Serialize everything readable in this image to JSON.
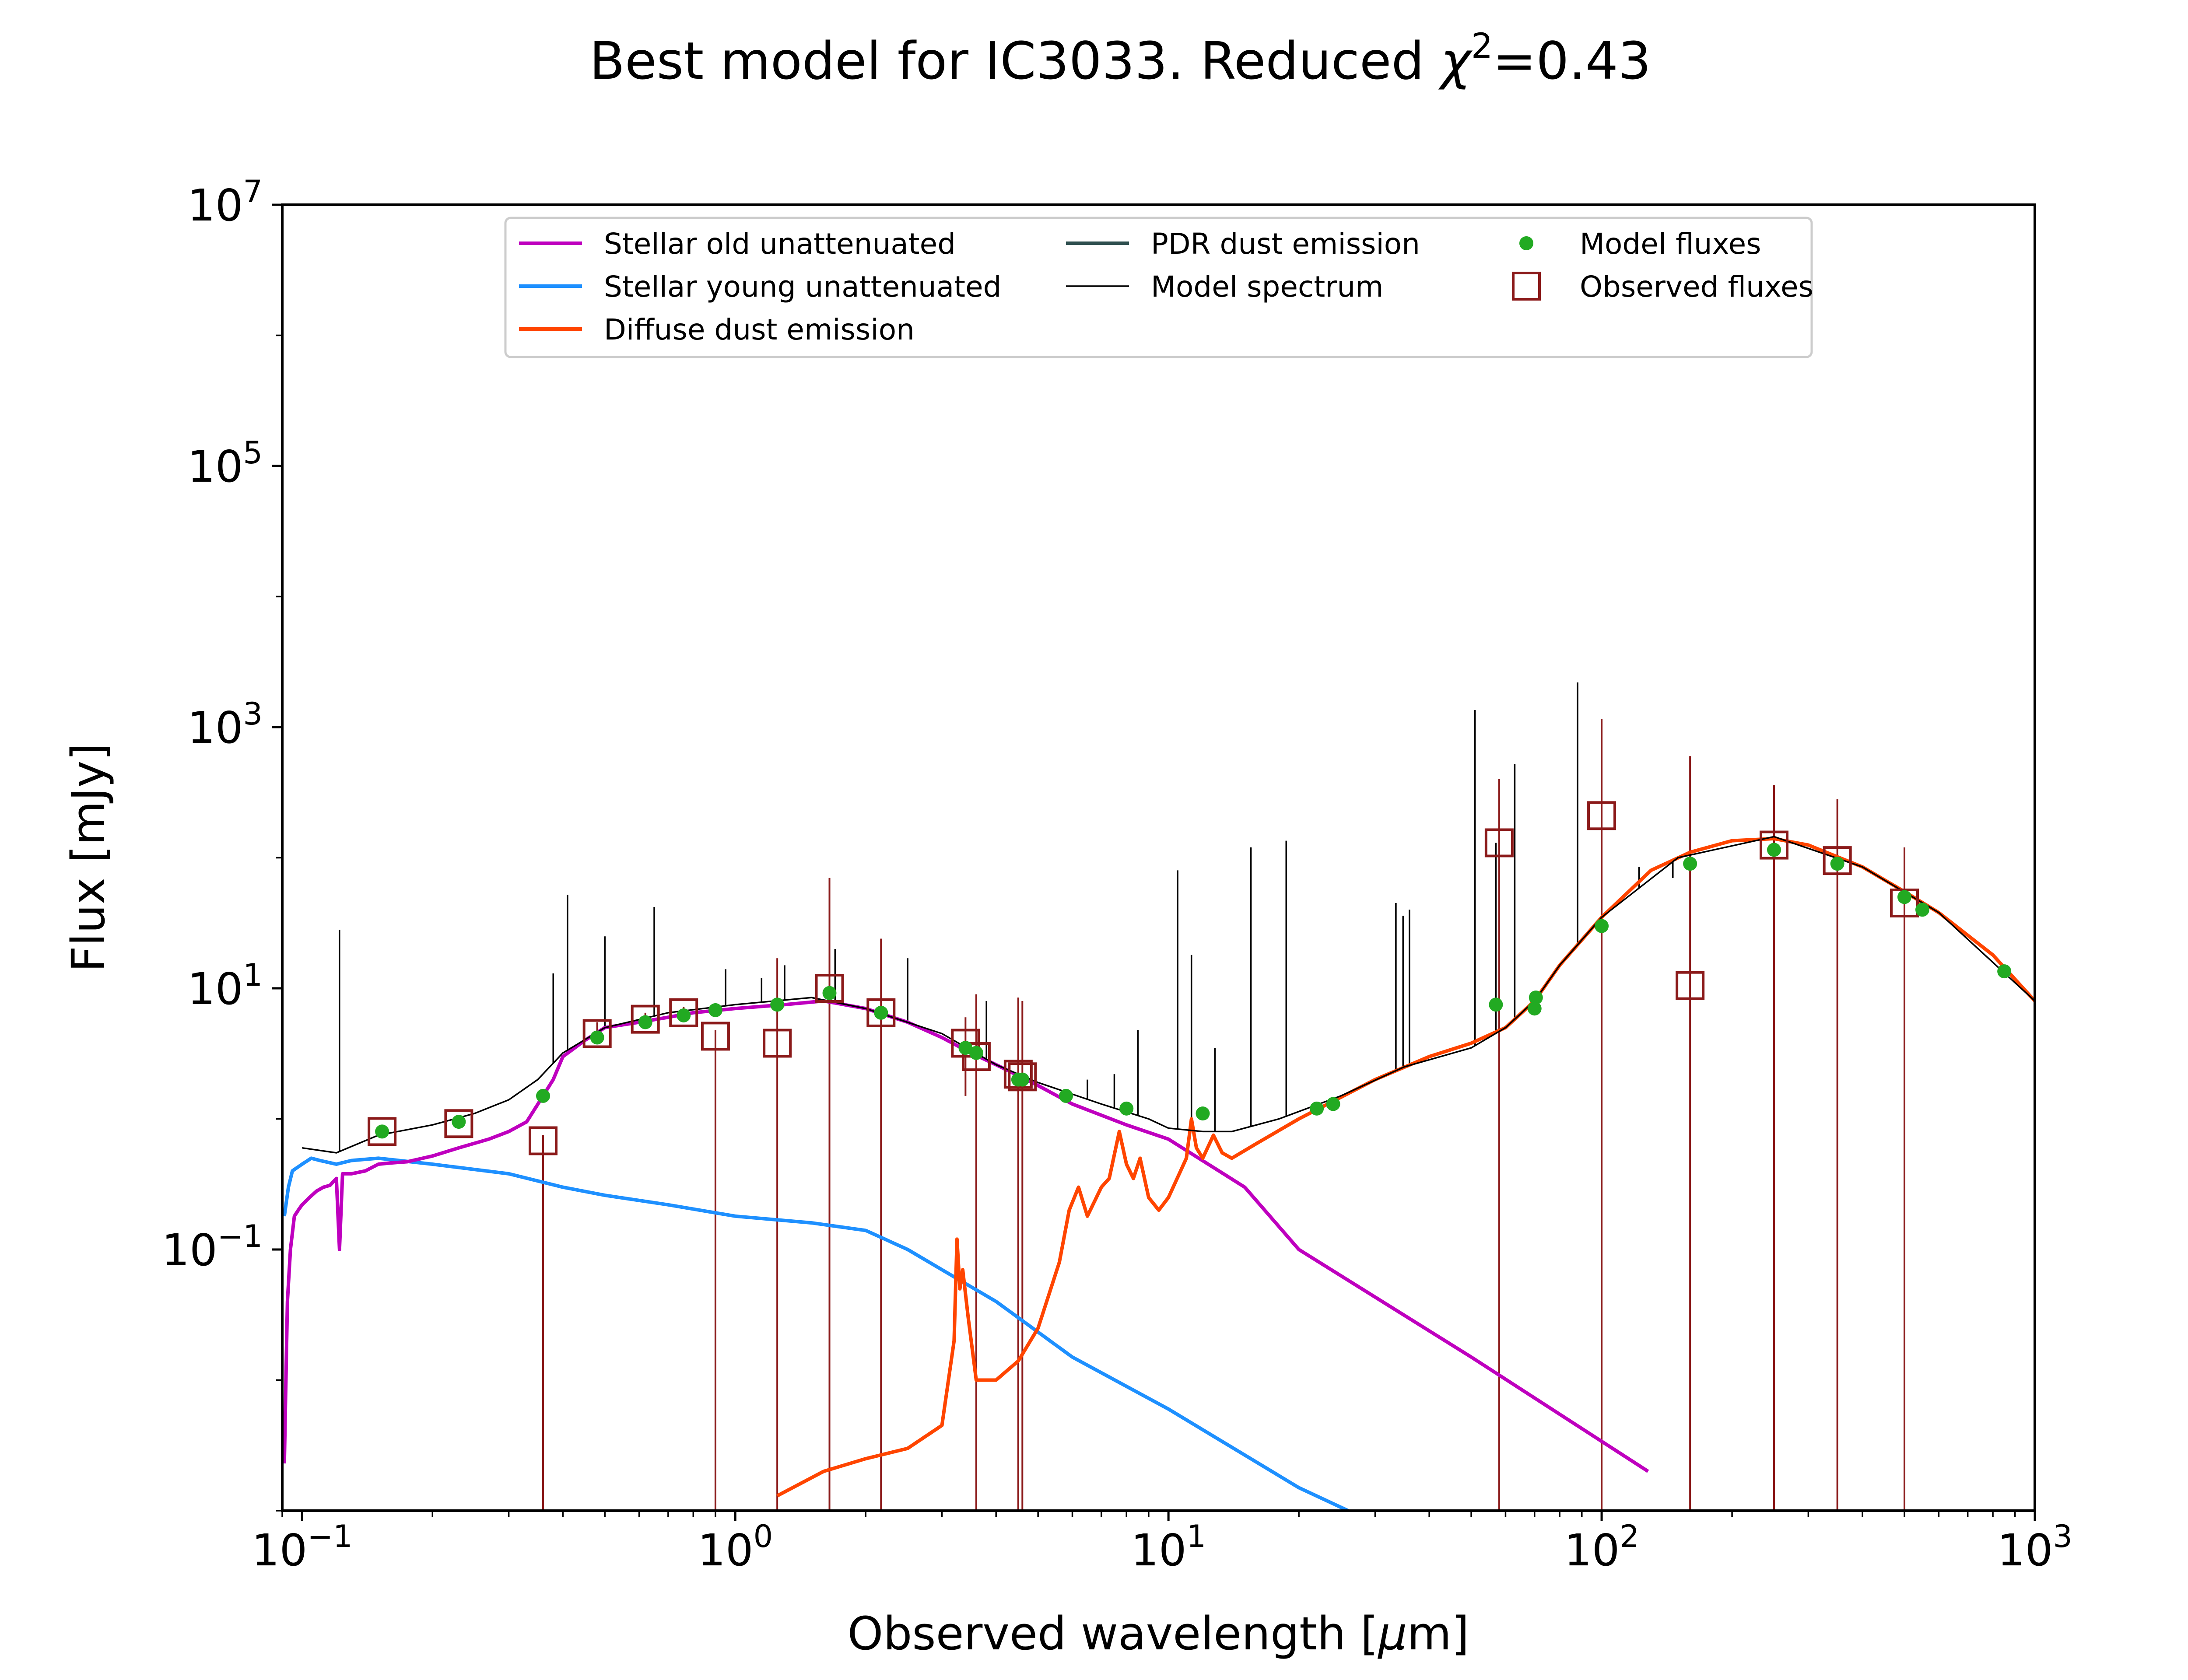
{
  "chart_data": {
    "type": "line",
    "title_prefix": "Best model for IC3033. Reduced ",
    "title_chi": "χ",
    "title_exp": "2",
    "title_suffix": "=0.43",
    "xlabel_prefix": "Observed wavelength [",
    "xlabel_mu": "μ",
    "xlabel_suffix": "m]",
    "ylabel": "Flux [mJy]",
    "x_scale": "log",
    "y_scale": "log",
    "xlim": [
      0.09,
      1000
    ],
    "ylim": [
      0.001,
      10000000
    ],
    "x_ticks": [
      {
        "value": 0.1,
        "base": "10",
        "exp": "−1"
      },
      {
        "value": 1,
        "base": "10",
        "exp": "0"
      },
      {
        "value": 10,
        "base": "10",
        "exp": "1"
      },
      {
        "value": 100,
        "base": "10",
        "exp": "2"
      },
      {
        "value": 1000,
        "base": "10",
        "exp": "3"
      }
    ],
    "y_ticks": [
      {
        "value": 0.1,
        "base": "10",
        "exp": "−1"
      },
      {
        "value": 10,
        "base": "10",
        "exp": "1"
      },
      {
        "value": 1000,
        "base": "10",
        "exp": "3"
      },
      {
        "value": 100000,
        "base": "10",
        "exp": "5"
      },
      {
        "value": 10000000,
        "base": "10",
        "exp": "7"
      }
    ],
    "grid": false,
    "legend_position": "top",
    "legend": [
      {
        "label": "Stellar old unattenuated",
        "kind": "line",
        "color": "#bf00bf"
      },
      {
        "label": "Stellar young unattenuated",
        "kind": "line",
        "color": "#1e90ff"
      },
      {
        "label": "Diffuse dust emission",
        "kind": "line",
        "color": "#ff4500"
      },
      {
        "label": "PDR dust emission",
        "kind": "line",
        "color": "#2f4f4f"
      },
      {
        "label": "Model spectrum",
        "kind": "thinline",
        "color": "#000000"
      },
      {
        "label": "Model fluxes",
        "kind": "dot",
        "color": "#22aa22"
      },
      {
        "label": "Observed fluxes",
        "kind": "square",
        "color": "#8b1a1a"
      }
    ],
    "series": [
      {
        "name": "Stellar old unattenuated",
        "color": "#bf00bf",
        "points": [
          [
            0.091,
            0.0023
          ],
          [
            0.0925,
            0.04
          ],
          [
            0.094,
            0.1
          ],
          [
            0.096,
            0.18
          ],
          [
            0.098,
            0.2
          ],
          [
            0.1,
            0.22
          ],
          [
            0.104,
            0.25
          ],
          [
            0.108,
            0.28
          ],
          [
            0.112,
            0.3
          ],
          [
            0.116,
            0.31
          ],
          [
            0.12,
            0.35
          ],
          [
            0.122,
            0.1
          ],
          [
            0.124,
            0.38
          ],
          [
            0.13,
            0.38
          ],
          [
            0.14,
            0.4
          ],
          [
            0.15,
            0.45
          ],
          [
            0.16,
            0.46
          ],
          [
            0.175,
            0.47
          ],
          [
            0.2,
            0.52
          ],
          [
            0.23,
            0.6
          ],
          [
            0.27,
            0.7
          ],
          [
            0.3,
            0.8
          ],
          [
            0.33,
            0.95
          ],
          [
            0.36,
            1.5
          ],
          [
            0.38,
            2
          ],
          [
            0.4,
            3
          ],
          [
            0.45,
            4
          ],
          [
            0.5,
            5
          ],
          [
            0.6,
            5.5
          ],
          [
            0.7,
            6
          ],
          [
            0.8,
            6.5
          ],
          [
            1.0,
            7
          ],
          [
            1.3,
            7.5
          ],
          [
            1.6,
            8
          ],
          [
            2.0,
            7
          ],
          [
            2.5,
            5.5
          ],
          [
            3.0,
            4.2
          ],
          [
            3.5,
            3.2
          ],
          [
            4.0,
            2.6
          ],
          [
            5.0,
            1.8
          ],
          [
            6.0,
            1.3
          ],
          [
            8.0,
            0.9
          ],
          [
            10,
            0.7
          ],
          [
            15,
            0.3
          ],
          [
            20,
            0.1
          ],
          [
            50,
            0.015
          ],
          [
            128,
            0.002
          ]
        ]
      },
      {
        "name": "Stellar young unattenuated",
        "color": "#1e90ff",
        "points": [
          [
            0.091,
            0.18
          ],
          [
            0.093,
            0.3
          ],
          [
            0.095,
            0.4
          ],
          [
            0.1,
            0.45
          ],
          [
            0.105,
            0.5
          ],
          [
            0.11,
            0.48
          ],
          [
            0.12,
            0.45
          ],
          [
            0.13,
            0.48
          ],
          [
            0.15,
            0.5
          ],
          [
            0.2,
            0.45
          ],
          [
            0.3,
            0.38
          ],
          [
            0.4,
            0.3
          ],
          [
            0.5,
            0.26
          ],
          [
            0.7,
            0.22
          ],
          [
            1.0,
            0.18
          ],
          [
            1.5,
            0.16
          ],
          [
            2.0,
            0.14
          ],
          [
            2.5,
            0.1
          ],
          [
            3.0,
            0.07
          ],
          [
            4.0,
            0.04
          ],
          [
            6.0,
            0.015
          ],
          [
            10,
            0.006
          ],
          [
            20,
            0.0015
          ],
          [
            26,
            0.001
          ]
        ]
      },
      {
        "name": "Diffuse dust emission",
        "color": "#ff4500",
        "points": [
          [
            1.25,
            0.0013
          ],
          [
            1.6,
            0.002
          ],
          [
            2.0,
            0.0025
          ],
          [
            2.5,
            0.003
          ],
          [
            3.0,
            0.0045
          ],
          [
            3.2,
            0.02
          ],
          [
            3.25,
            0.12
          ],
          [
            3.3,
            0.05
          ],
          [
            3.35,
            0.07
          ],
          [
            3.45,
            0.03
          ],
          [
            3.6,
            0.01
          ],
          [
            4.0,
            0.01
          ],
          [
            4.5,
            0.014
          ],
          [
            5.0,
            0.025
          ],
          [
            5.6,
            0.08
          ],
          [
            5.9,
            0.2
          ],
          [
            6.2,
            0.3
          ],
          [
            6.5,
            0.18
          ],
          [
            7.0,
            0.3
          ],
          [
            7.3,
            0.35
          ],
          [
            7.7,
            0.8
          ],
          [
            8.0,
            0.45
          ],
          [
            8.3,
            0.35
          ],
          [
            8.6,
            0.5
          ],
          [
            9.0,
            0.25
          ],
          [
            9.5,
            0.2
          ],
          [
            10,
            0.25
          ],
          [
            11.0,
            0.5
          ],
          [
            11.3,
            1.0
          ],
          [
            11.6,
            0.6
          ],
          [
            12.0,
            0.5
          ],
          [
            12.7,
            0.75
          ],
          [
            13.3,
            0.55
          ],
          [
            14,
            0.5
          ],
          [
            16,
            0.65
          ],
          [
            20,
            1.0
          ],
          [
            30,
            2.0
          ],
          [
            40,
            3.0
          ],
          [
            50,
            3.8
          ],
          [
            60,
            5.0
          ],
          [
            70,
            8
          ],
          [
            80,
            15
          ],
          [
            100,
            35
          ],
          [
            130,
            80
          ],
          [
            160,
            110
          ],
          [
            200,
            135
          ],
          [
            250,
            140
          ],
          [
            300,
            125
          ],
          [
            400,
            85
          ],
          [
            500,
            55
          ],
          [
            600,
            38
          ],
          [
            800,
            18
          ],
          [
            1000,
            8
          ]
        ]
      },
      {
        "name": "Model spectrum",
        "color": "#000000",
        "points": [
          [
            0.1,
            0.6
          ],
          [
            0.12,
            0.55
          ],
          [
            0.15,
            0.75
          ],
          [
            0.2,
            0.9
          ],
          [
            0.25,
            1.1
          ],
          [
            0.3,
            1.4
          ],
          [
            0.35,
            2
          ],
          [
            0.4,
            3.2
          ],
          [
            0.5,
            5
          ],
          [
            0.7,
            6.5
          ],
          [
            1.0,
            7.5
          ],
          [
            1.5,
            8.5
          ],
          [
            2.0,
            7
          ],
          [
            3.0,
            4.5
          ],
          [
            4.0,
            2.6
          ],
          [
            5.0,
            1.9
          ],
          [
            7.0,
            1.3
          ],
          [
            9.0,
            1.0
          ],
          [
            10,
            0.85
          ],
          [
            12,
            0.8
          ],
          [
            14,
            0.8
          ],
          [
            18,
            1.0
          ],
          [
            25,
            1.5
          ],
          [
            35,
            2.5
          ],
          [
            50,
            3.5
          ],
          [
            60,
            5
          ],
          [
            70,
            8
          ],
          [
            80,
            15
          ],
          [
            100,
            35
          ],
          [
            150,
            100
          ],
          [
            250,
            145
          ],
          [
            400,
            85
          ],
          [
            600,
            38
          ],
          [
            1000,
            8
          ]
        ],
        "lines": [
          [
            0.122,
            28
          ],
          [
            0.38,
            13
          ],
          [
            0.41,
            52
          ],
          [
            0.5,
            25
          ],
          [
            0.65,
            42
          ],
          [
            0.95,
            14
          ],
          [
            1.15,
            12
          ],
          [
            1.3,
            15
          ],
          [
            1.7,
            20
          ],
          [
            2.5,
            17
          ],
          [
            3.8,
            8
          ],
          [
            6.5,
            2
          ],
          [
            7.5,
            2.2
          ],
          [
            8.5,
            4.8
          ],
          [
            10.5,
            80
          ],
          [
            11.3,
            18
          ],
          [
            12.8,
            3.5
          ],
          [
            15.5,
            120
          ],
          [
            18.7,
            135
          ],
          [
            33.5,
            45
          ],
          [
            34.8,
            36
          ],
          [
            36,
            40
          ],
          [
            51,
            1350
          ],
          [
            57,
            130
          ],
          [
            63,
            520
          ],
          [
            88,
            2200
          ],
          [
            122,
            85
          ],
          [
            146,
            70
          ]
        ]
      }
    ],
    "model_fluxes": [
      [
        0.153,
        0.8
      ],
      [
        0.23,
        0.95
      ],
      [
        0.36,
        1.5
      ],
      [
        0.48,
        4.2
      ],
      [
        0.62,
        5.5
      ],
      [
        0.76,
        6.2
      ],
      [
        0.9,
        6.8
      ],
      [
        1.25,
        7.5
      ],
      [
        1.65,
        9.2
      ],
      [
        2.17,
        6.5
      ],
      [
        3.4,
        3.5
      ],
      [
        3.6,
        3.2
      ],
      [
        4.5,
        2
      ],
      [
        4.6,
        2
      ],
      [
        5.8,
        1.5
      ],
      [
        8.0,
        1.2
      ],
      [
        12,
        1.1
      ],
      [
        22,
        1.2
      ],
      [
        24,
        1.3
      ],
      [
        57,
        7.5
      ],
      [
        70,
        7
      ],
      [
        70.5,
        8.5
      ],
      [
        100,
        30
      ],
      [
        160,
        90
      ],
      [
        250,
        115
      ],
      [
        350,
        90
      ],
      [
        500,
        50
      ],
      [
        550,
        40
      ],
      [
        850,
        13.5
      ]
    ],
    "observed_fluxes": [
      {
        "x": 0.153,
        "y": 0.8,
        "upper": 0.9
      },
      {
        "x": 0.23,
        "y": 0.92,
        "upper": 1.05
      },
      {
        "x": 0.36,
        "y": 0.68,
        "upper": 0.75,
        "lower_to_axis": true
      },
      {
        "x": 0.48,
        "y": 4.5,
        "upper": 5.5
      },
      {
        "x": 0.62,
        "y": 5.8,
        "upper": 6.5
      },
      {
        "x": 0.76,
        "y": 6.5,
        "upper": 7.2
      },
      {
        "x": 0.9,
        "y": 4.3,
        "upper": 4.8,
        "lower_to_axis": true
      },
      {
        "x": 1.25,
        "y": 3.8,
        "upper": 17,
        "lower_to_axis": true
      },
      {
        "x": 1.65,
        "y": 10,
        "upper": 70,
        "lower_to_axis": true
      },
      {
        "x": 2.17,
        "y": 6.5,
        "upper": 24,
        "lower_to_axis": true
      },
      {
        "x": 3.4,
        "y": 3.8,
        "upper": 6,
        "lower": 1.5
      },
      {
        "x": 3.6,
        "y": 3.0,
        "upper": 9,
        "lower_to_axis": true
      },
      {
        "x": 4.5,
        "y": 2.2,
        "upper": 8.5,
        "lower_to_axis": true
      },
      {
        "x": 4.6,
        "y": 2.1,
        "upper": 8,
        "lower_to_axis": true
      },
      {
        "x": 58,
        "y": 130,
        "upper": 400,
        "lower_to_axis": true
      },
      {
        "x": 100,
        "y": 210,
        "upper": 1150,
        "lower_to_axis": true
      },
      {
        "x": 160,
        "y": 10.5,
        "upper": 600,
        "lower_to_axis": true
      },
      {
        "x": 250,
        "y": 125,
        "upper": 360,
        "lower_to_axis": true
      },
      {
        "x": 350,
        "y": 95,
        "upper": 280,
        "lower_to_axis": true
      },
      {
        "x": 500,
        "y": 45,
        "upper": 120,
        "lower_to_axis": true
      }
    ]
  }
}
